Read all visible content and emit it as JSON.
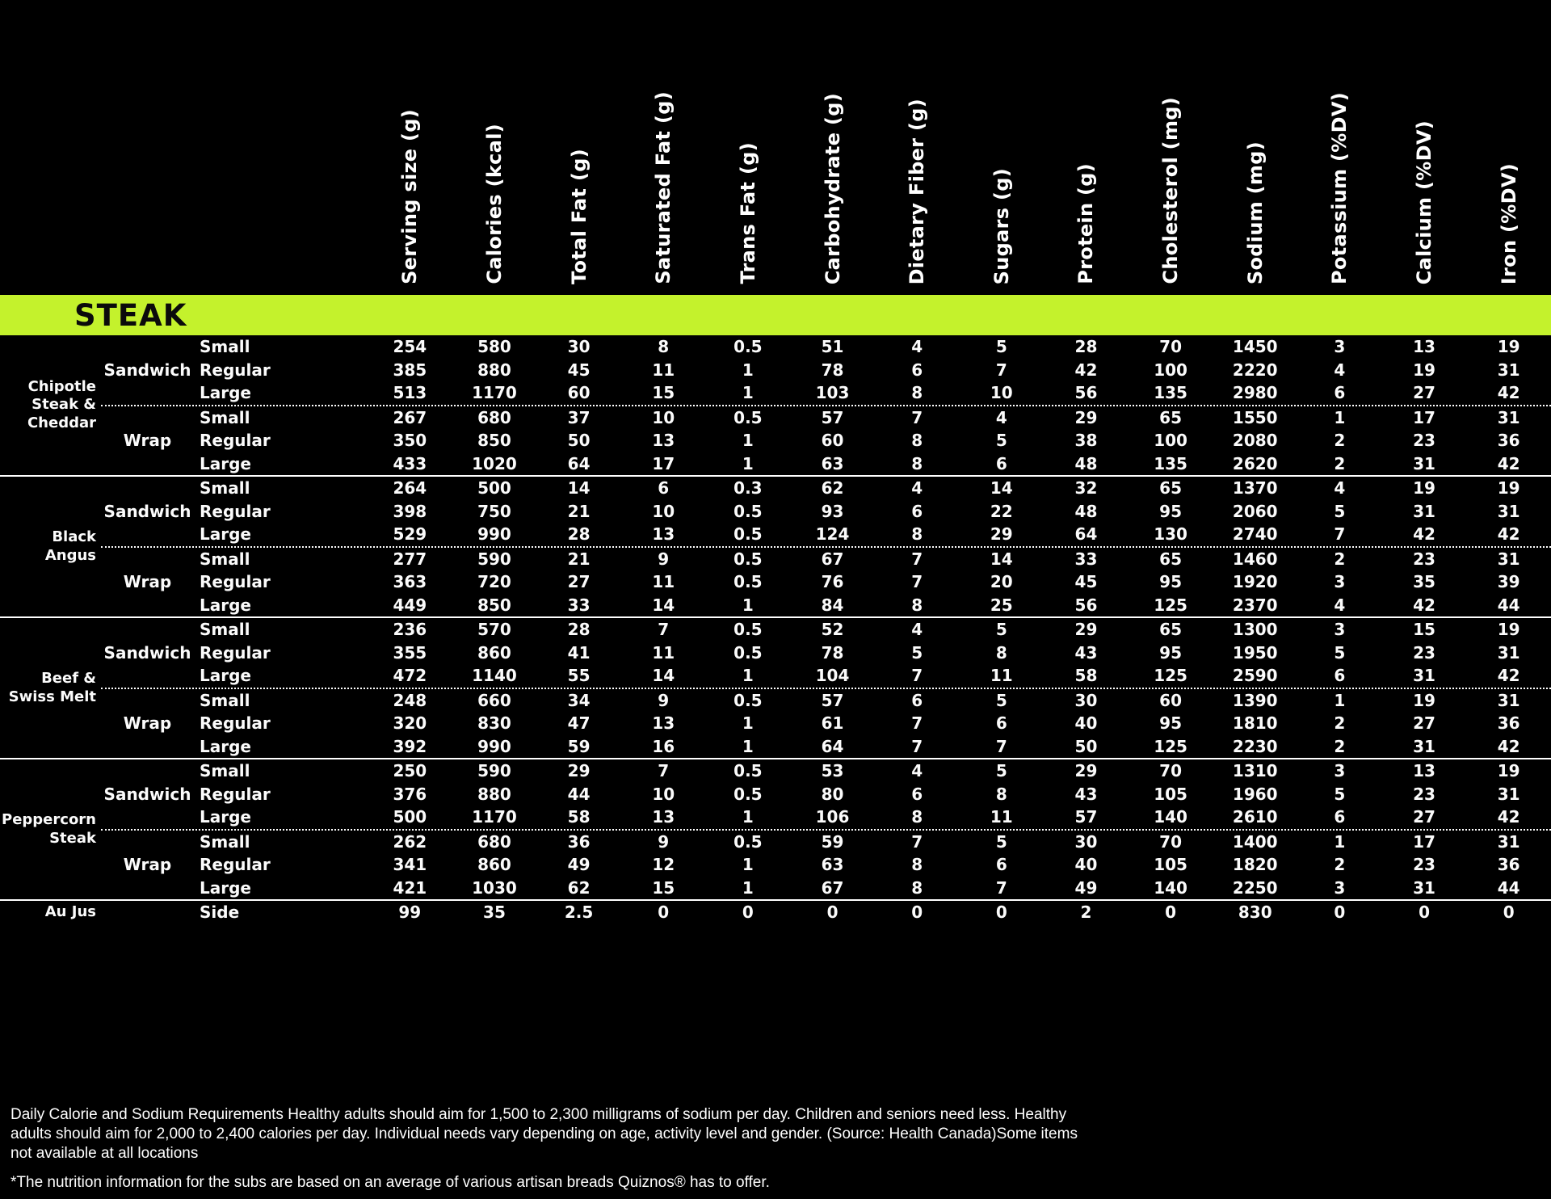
{
  "section": {
    "title": "STEAK"
  },
  "accent_color": "#c4f22c",
  "background_color": "#000000",
  "text_color": "#ffffff",
  "table": {
    "columns": [
      "Serving size (g)",
      "Calories (kcal)",
      "Total Fat (g)",
      "Saturated Fat (g)",
      "Trans Fat (g)",
      "Carbohydrate (g)",
      "Dietary Fiber (g)",
      "Sugars (g)",
      "Protein (g)",
      "Cholesterol (mg)",
      "Sodium (mg)",
      "Potassium (%DV)",
      "Calcium (%DV)",
      "Iron (%DV)"
    ],
    "groups": [
      {
        "name": "Chipotle Steak & Cheddar",
        "subgroups": [
          {
            "format": "Sandwich",
            "rows": [
              {
                "size": "Small",
                "values": [
                  254,
                  580,
                  30,
                  8,
                  0.5,
                  51,
                  4,
                  5,
                  28,
                  70,
                  1450,
                  3,
                  13,
                  19
                ]
              },
              {
                "size": "Regular",
                "values": [
                  385,
                  880,
                  45,
                  11,
                  1,
                  78,
                  6,
                  7,
                  42,
                  100,
                  2220,
                  4,
                  19,
                  31
                ]
              },
              {
                "size": "Large",
                "values": [
                  513,
                  1170,
                  60,
                  15,
                  1,
                  103,
                  8,
                  10,
                  56,
                  135,
                  2980,
                  6,
                  27,
                  42
                ]
              }
            ]
          },
          {
            "format": "Wrap",
            "rows": [
              {
                "size": "Small",
                "values": [
                  267,
                  680,
                  37,
                  10,
                  0.5,
                  57,
                  7,
                  4,
                  29,
                  65,
                  1550,
                  1,
                  17,
                  31
                ]
              },
              {
                "size": "Regular",
                "values": [
                  350,
                  850,
                  50,
                  13,
                  1,
                  60,
                  8,
                  5,
                  38,
                  100,
                  2080,
                  2,
                  23,
                  36
                ]
              },
              {
                "size": "Large",
                "values": [
                  433,
                  1020,
                  64,
                  17,
                  1,
                  63,
                  8,
                  6,
                  48,
                  135,
                  2620,
                  2,
                  31,
                  42
                ]
              }
            ]
          }
        ]
      },
      {
        "name": "Black Angus",
        "subgroups": [
          {
            "format": "Sandwich",
            "rows": [
              {
                "size": "Small",
                "values": [
                  264,
                  500,
                  14,
                  6,
                  0.3,
                  62,
                  4,
                  14,
                  32,
                  65,
                  1370,
                  4,
                  19,
                  19
                ]
              },
              {
                "size": "Regular",
                "values": [
                  398,
                  750,
                  21,
                  10,
                  0.5,
                  93,
                  6,
                  22,
                  48,
                  95,
                  2060,
                  5,
                  31,
                  31
                ]
              },
              {
                "size": "Large",
                "values": [
                  529,
                  990,
                  28,
                  13,
                  0.5,
                  124,
                  8,
                  29,
                  64,
                  130,
                  2740,
                  7,
                  42,
                  42
                ]
              }
            ]
          },
          {
            "format": "Wrap",
            "rows": [
              {
                "size": "Small",
                "values": [
                  277,
                  590,
                  21,
                  9,
                  0.5,
                  67,
                  7,
                  14,
                  33,
                  65,
                  1460,
                  2,
                  23,
                  31
                ]
              },
              {
                "size": "Regular",
                "values": [
                  363,
                  720,
                  27,
                  11,
                  0.5,
                  76,
                  7,
                  20,
                  45,
                  95,
                  1920,
                  3,
                  35,
                  39
                ]
              },
              {
                "size": "Large",
                "values": [
                  449,
                  850,
                  33,
                  14,
                  1,
                  84,
                  8,
                  25,
                  56,
                  125,
                  2370,
                  4,
                  42,
                  44
                ]
              }
            ]
          }
        ]
      },
      {
        "name": "Beef & Swiss Melt",
        "subgroups": [
          {
            "format": "Sandwich",
            "rows": [
              {
                "size": "Small",
                "values": [
                  236,
                  570,
                  28,
                  7,
                  0.5,
                  52,
                  4,
                  5,
                  29,
                  65,
                  1300,
                  3,
                  15,
                  19
                ]
              },
              {
                "size": "Regular",
                "values": [
                  355,
                  860,
                  41,
                  11,
                  0.5,
                  78,
                  5,
                  8,
                  43,
                  95,
                  1950,
                  5,
                  23,
                  31
                ]
              },
              {
                "size": "Large",
                "values": [
                  472,
                  1140,
                  55,
                  14,
                  1,
                  104,
                  7,
                  11,
                  58,
                  125,
                  2590,
                  6,
                  31,
                  42
                ]
              }
            ]
          },
          {
            "format": "Wrap",
            "rows": [
              {
                "size": "Small",
                "values": [
                  248,
                  660,
                  34,
                  9,
                  0.5,
                  57,
                  6,
                  5,
                  30,
                  60,
                  1390,
                  1,
                  19,
                  31
                ]
              },
              {
                "size": "Regular",
                "values": [
                  320,
                  830,
                  47,
                  13,
                  1,
                  61,
                  7,
                  6,
                  40,
                  95,
                  1810,
                  2,
                  27,
                  36
                ]
              },
              {
                "size": "Large",
                "values": [
                  392,
                  990,
                  59,
                  16,
                  1,
                  64,
                  7,
                  7,
                  50,
                  125,
                  2230,
                  2,
                  31,
                  42
                ]
              }
            ]
          }
        ]
      },
      {
        "name": "Peppercorn Steak",
        "subgroups": [
          {
            "format": "Sandwich",
            "rows": [
              {
                "size": "Small",
                "values": [
                  250,
                  590,
                  29,
                  7,
                  0.5,
                  53,
                  4,
                  5,
                  29,
                  70,
                  1310,
                  3,
                  13,
                  19
                ]
              },
              {
                "size": "Regular",
                "values": [
                  376,
                  880,
                  44,
                  10,
                  0.5,
                  80,
                  6,
                  8,
                  43,
                  105,
                  1960,
                  5,
                  23,
                  31
                ]
              },
              {
                "size": "Large",
                "values": [
                  500,
                  1170,
                  58,
                  13,
                  1,
                  106,
                  8,
                  11,
                  57,
                  140,
                  2610,
                  6,
                  27,
                  42
                ]
              }
            ]
          },
          {
            "format": "Wrap",
            "rows": [
              {
                "size": "Small",
                "values": [
                  262,
                  680,
                  36,
                  9,
                  0.5,
                  59,
                  7,
                  5,
                  30,
                  70,
                  1400,
                  1,
                  17,
                  31
                ]
              },
              {
                "size": "Regular",
                "values": [
                  341,
                  860,
                  49,
                  12,
                  1,
                  63,
                  8,
                  6,
                  40,
                  105,
                  1820,
                  2,
                  23,
                  36
                ]
              },
              {
                "size": "Large",
                "values": [
                  421,
                  1030,
                  62,
                  15,
                  1,
                  67,
                  8,
                  7,
                  49,
                  140,
                  2250,
                  3,
                  31,
                  44
                ]
              }
            ]
          }
        ]
      },
      {
        "name": "Au Jus",
        "subgroups": [
          {
            "format": "",
            "rows": [
              {
                "size": "Side",
                "values": [
                  99,
                  35,
                  2.5,
                  0,
                  0,
                  0,
                  0,
                  0,
                  2,
                  0,
                  830,
                  0,
                  0,
                  0
                ]
              }
            ]
          }
        ]
      }
    ]
  },
  "footer": {
    "disclaimer": "Daily Calorie and Sodium Requirements Healthy adults should aim for 1,500 to 2,300 milligrams of sodium per day. Children and seniors need less. Healthy adults should aim for 2,000 to 2,400 calories per day. Individual needs vary depending on age, activity level and gender. (Source: Health Canada)Some items not available at all locations",
    "footnote": "*The nutrition information for the subs are based on an average of various artisan breads Quiznos® has to offer."
  }
}
